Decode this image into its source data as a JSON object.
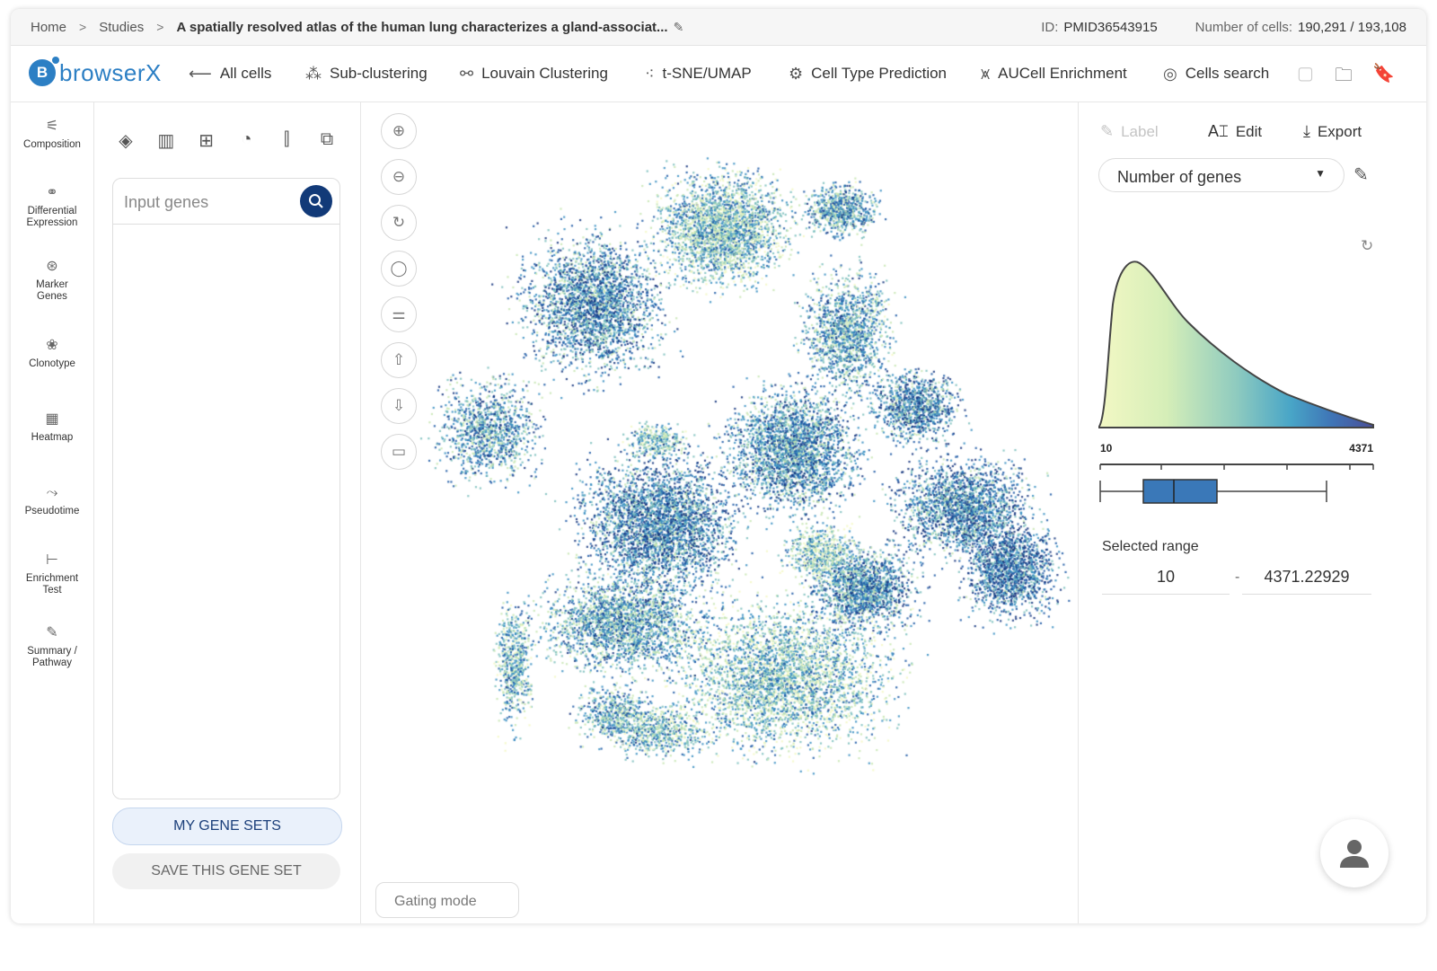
{
  "breadcrumb": {
    "items": [
      "Home",
      "Studies"
    ],
    "current": "A spatially resolved atlas of the human lung characterizes a gland-associat...",
    "separator": ">"
  },
  "meta": {
    "id_label": "ID:",
    "id_value": "PMID36543915",
    "cells_label": "Number of cells:",
    "cells_value": "190,291 / 193,108"
  },
  "logo": {
    "mark": "B",
    "text": "browserX"
  },
  "toolbar": {
    "items": [
      {
        "label": "All cells",
        "icon": "arrow-left-icon"
      },
      {
        "label": "Sub-clustering",
        "icon": "sub-cluster-icon"
      },
      {
        "label": "Louvain Clustering",
        "icon": "louvain-icon"
      },
      {
        "label": "t-SNE/UMAP",
        "icon": "scatter-icon"
      },
      {
        "label": "Cell Type Prediction",
        "icon": "prediction-icon"
      },
      {
        "label": "AUCell Enrichment",
        "icon": "aucell-icon"
      },
      {
        "label": "Cells search",
        "icon": "search-icon"
      }
    ]
  },
  "rail": {
    "items": [
      {
        "label": "Composition"
      },
      {
        "label": "Differential Expression"
      },
      {
        "label": "Marker Genes"
      },
      {
        "label": "Clonotype"
      },
      {
        "label": "Heatmap"
      },
      {
        "label": "Pseudotime"
      },
      {
        "label": "Enrichment Test"
      },
      {
        "label": "Summary / Pathway"
      }
    ]
  },
  "gene_panel": {
    "input_placeholder": "Input genes",
    "my_gene_sets": "MY GENE SETS",
    "save_gene_set": "SAVE THIS GENE SET"
  },
  "plot": {
    "gating_mode": "Gating mode",
    "colors": [
      "#f3f8c4",
      "#c8e6b4",
      "#7cc0bd",
      "#3a8fc2",
      "#1f5aa6",
      "#15357e"
    ]
  },
  "right_panel": {
    "label_btn": "Label",
    "edit_btn": "Edit",
    "export_btn": "Export",
    "select_value": "Number of genes",
    "density_min": "10",
    "density_max": "4371",
    "selected_range_label": "Selected range",
    "range_from": "10",
    "range_dash": "-",
    "range_to": "4371.22929"
  }
}
